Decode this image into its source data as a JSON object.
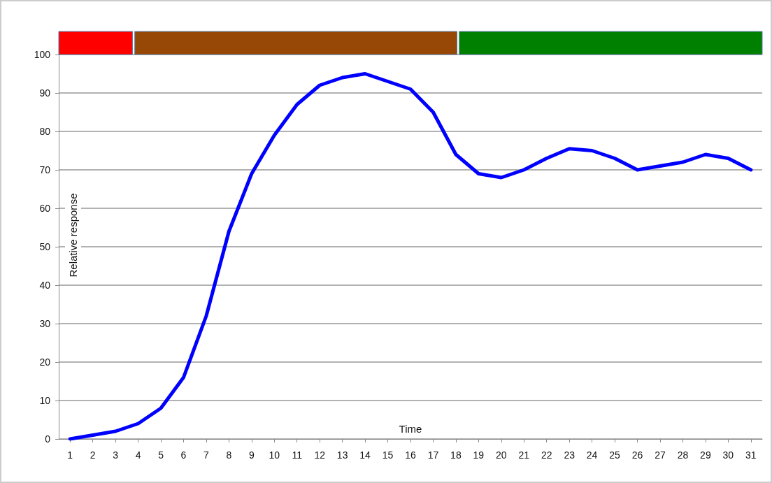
{
  "chart_data": {
    "type": "line",
    "xlabel": "Time",
    "ylabel": "Relative response",
    "x": [
      1,
      2,
      3,
      4,
      5,
      6,
      7,
      8,
      9,
      10,
      11,
      12,
      13,
      14,
      15,
      16,
      17,
      18,
      19,
      20,
      21,
      22,
      23,
      24,
      25,
      26,
      27,
      28,
      29,
      30,
      31
    ],
    "series": [
      {
        "color": "#0000ff",
        "values": [
          0,
          1,
          2,
          4,
          8,
          16,
          32,
          54,
          69,
          79,
          87,
          92,
          94,
          95,
          93,
          91,
          85,
          74,
          69,
          68,
          70,
          73,
          75.5,
          75,
          73,
          70,
          71,
          72,
          74,
          73,
          70
        ]
      }
    ],
    "xlim": [
      0.5,
      31.5
    ],
    "xticks": [
      1,
      2,
      3,
      4,
      5,
      6,
      7,
      8,
      9,
      10,
      11,
      12,
      13,
      14,
      15,
      16,
      17,
      18,
      19,
      20,
      21,
      22,
      23,
      24,
      25,
      26,
      27,
      28,
      29,
      30,
      31
    ],
    "ylim": [
      0,
      106
    ],
    "yticks": [
      0,
      10,
      20,
      30,
      40,
      50,
      60,
      70,
      80,
      90,
      100
    ],
    "bands": [
      {
        "axis": "x",
        "from": 0.5,
        "to": 3.75,
        "color": "#ff0000"
      },
      {
        "axis": "x",
        "from": 3.85,
        "to": 18.05,
        "color": "#974806"
      },
      {
        "axis": "x",
        "from": 18.15,
        "to": 31.5,
        "color": "#008000"
      }
    ],
    "grid": "y",
    "marker": "none",
    "line_style": "solid"
  }
}
